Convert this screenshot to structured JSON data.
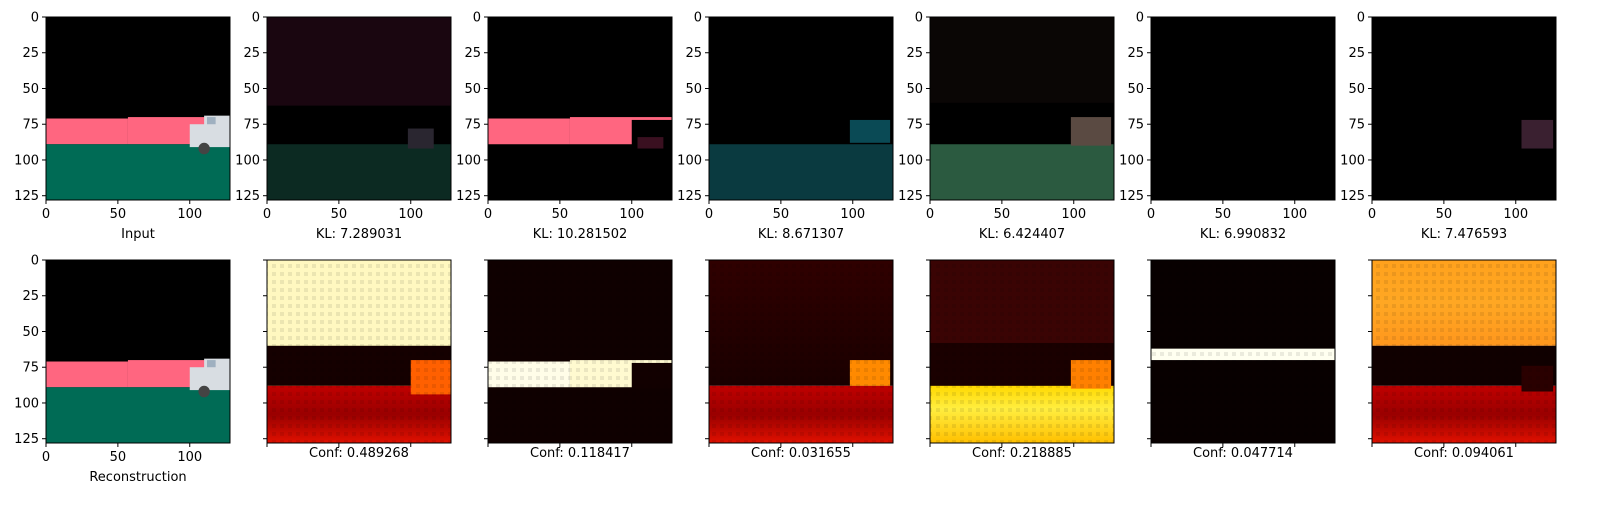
{
  "figure": {
    "chart_data": [
      {
        "type": "image",
        "row": "top",
        "caption": "Input",
        "shows_y_ticks": true,
        "shows_x_ticks": true,
        "x_ticks": [
          0,
          50,
          100
        ],
        "y_ticks": [
          0,
          25,
          50,
          75,
          100,
          125
        ],
        "image_size": [
          128,
          128
        ],
        "content": "input-rgb"
      },
      {
        "type": "image",
        "row": "top",
        "caption": "KL: 7.289031",
        "kl": 7.289031,
        "x_ticks": [
          0,
          50,
          100
        ],
        "y_ticks": [
          0,
          25,
          50,
          75,
          100,
          125
        ],
        "content": "slot1-rgb"
      },
      {
        "type": "image",
        "row": "top",
        "caption": "KL: 10.281502",
        "kl": 10.281502,
        "x_ticks": [
          0,
          50,
          100
        ],
        "y_ticks": [
          0,
          25,
          50,
          75,
          100,
          125
        ],
        "content": "slot2-rgb"
      },
      {
        "type": "image",
        "row": "top",
        "caption": "KL: 8.671307",
        "kl": 8.671307,
        "x_ticks": [
          0,
          50,
          100
        ],
        "y_ticks": [
          0,
          25,
          50,
          75,
          100,
          125
        ],
        "content": "slot3-rgb"
      },
      {
        "type": "image",
        "row": "top",
        "caption": "KL: 6.424407",
        "kl": 6.424407,
        "x_ticks": [
          0,
          50,
          100
        ],
        "y_ticks": [
          0,
          25,
          50,
          75,
          100,
          125
        ],
        "content": "slot4-rgb"
      },
      {
        "type": "image",
        "row": "top",
        "caption": "KL: 6.990832",
        "kl": 6.990832,
        "x_ticks": [
          0,
          50,
          100
        ],
        "y_ticks": [
          0,
          25,
          50,
          75,
          100,
          125
        ],
        "content": "slot5-rgb"
      },
      {
        "type": "image",
        "row": "top",
        "caption": "KL: 7.476593",
        "kl": 7.476593,
        "x_ticks": [
          0,
          50,
          100
        ],
        "y_ticks": [
          0,
          25,
          50,
          75,
          100,
          125
        ],
        "content": "slot6-rgb"
      },
      {
        "type": "image",
        "row": "bottom",
        "caption": "Reconstruction",
        "x_ticks": [
          0,
          50,
          100
        ],
        "y_ticks": [
          0,
          25,
          50,
          75,
          100,
          125
        ],
        "content": "reconstruction-rgb"
      },
      {
        "type": "heatmap",
        "row": "bottom",
        "caption": "Conf: 0.489268",
        "conf": 0.489268,
        "colormap": "hot"
      },
      {
        "type": "heatmap",
        "row": "bottom",
        "caption": "Conf: 0.118417",
        "conf": 0.118417,
        "colormap": "hot"
      },
      {
        "type": "heatmap",
        "row": "bottom",
        "caption": "Conf: 0.031655",
        "conf": 0.031655,
        "colormap": "hot"
      },
      {
        "type": "heatmap",
        "row": "bottom",
        "caption": "Conf: 0.218885",
        "conf": 0.218885,
        "colormap": "hot"
      },
      {
        "type": "heatmap",
        "row": "bottom",
        "caption": "Conf: 0.047714",
        "conf": 0.047714,
        "colormap": "hot"
      },
      {
        "type": "heatmap",
        "row": "bottom",
        "caption": "Conf: 0.094061",
        "conf": 0.094061,
        "colormap": "hot"
      }
    ]
  },
  "chart_data": [
    {
      "type": "image",
      "caption": "Input"
    },
    {
      "type": "image",
      "caption": "KL: 7.289031",
      "value": 7.289031
    },
    {
      "type": "image",
      "caption": "KL: 10.281502",
      "value": 10.281502
    },
    {
      "type": "image",
      "caption": "KL: 8.671307",
      "value": 8.671307
    },
    {
      "type": "image",
      "caption": "KL: 6.424407",
      "value": 6.424407
    },
    {
      "type": "image",
      "caption": "KL: 6.990832",
      "value": 6.990832
    },
    {
      "type": "image",
      "caption": "KL: 7.476593",
      "value": 7.476593
    },
    {
      "type": "image",
      "caption": "Reconstruction"
    },
    {
      "type": "heatmap",
      "caption": "Conf: 0.489268",
      "value": 0.489268
    },
    {
      "type": "heatmap",
      "caption": "Conf: 0.118417",
      "value": 0.118417
    },
    {
      "type": "heatmap",
      "caption": "Conf: 0.031655",
      "value": 0.031655
    },
    {
      "type": "heatmap",
      "caption": "Conf: 0.218885",
      "value": 0.218885
    },
    {
      "type": "heatmap",
      "caption": "Conf: 0.047714",
      "value": 0.047714
    },
    {
      "type": "heatmap",
      "caption": "Conf: 0.094061",
      "value": 0.094061
    }
  ],
  "axis": {
    "x_ticks": [
      "0",
      "50",
      "100"
    ],
    "y_ticks": [
      "0",
      "25",
      "50",
      "75",
      "100",
      "125"
    ]
  },
  "colors": {
    "pink": "#ff6680",
    "green": "#006b55",
    "black": "#000000",
    "hot_white": "#ffffe0",
    "hot_yellow": "#ffe000",
    "hot_red": "#cc0000"
  }
}
